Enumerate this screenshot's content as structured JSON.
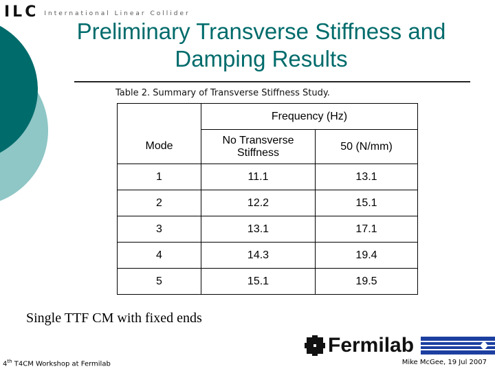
{
  "header": {
    "logo_mark": "ILC",
    "logo_text": "International Linear Collider"
  },
  "slide": {
    "title_line1": "Preliminary Transverse Stiffness and",
    "title_line2": "Damping Results",
    "caption": "Table 2. Summary of Transverse Stiffness Study.",
    "note": "Single TTF CM with fixed ends"
  },
  "table": {
    "group_header": "Frequency (Hz)",
    "columns": [
      "Mode",
      "No Transverse Stiffness",
      "50 (N/mm)"
    ],
    "rows": [
      [
        "1",
        "11.1",
        "13.1"
      ],
      [
        "2",
        "12.2",
        "15.1"
      ],
      [
        "3",
        "13.1",
        "17.1"
      ],
      [
        "4",
        "14.3",
        "19.4"
      ],
      [
        "5",
        "15.1",
        "19.5"
      ]
    ]
  },
  "footer": {
    "left_prefix": "4",
    "left_sup": "th",
    "left_rest": " T4CM Workshop at Fermilab",
    "right": "Mike McGee, 19 Jul 2007",
    "brand": "Fermilab"
  },
  "colors": {
    "teal_dark": "#006b6b",
    "teal_light": "#8fc6c6",
    "fermilab_blue": "#1c3fa0"
  }
}
